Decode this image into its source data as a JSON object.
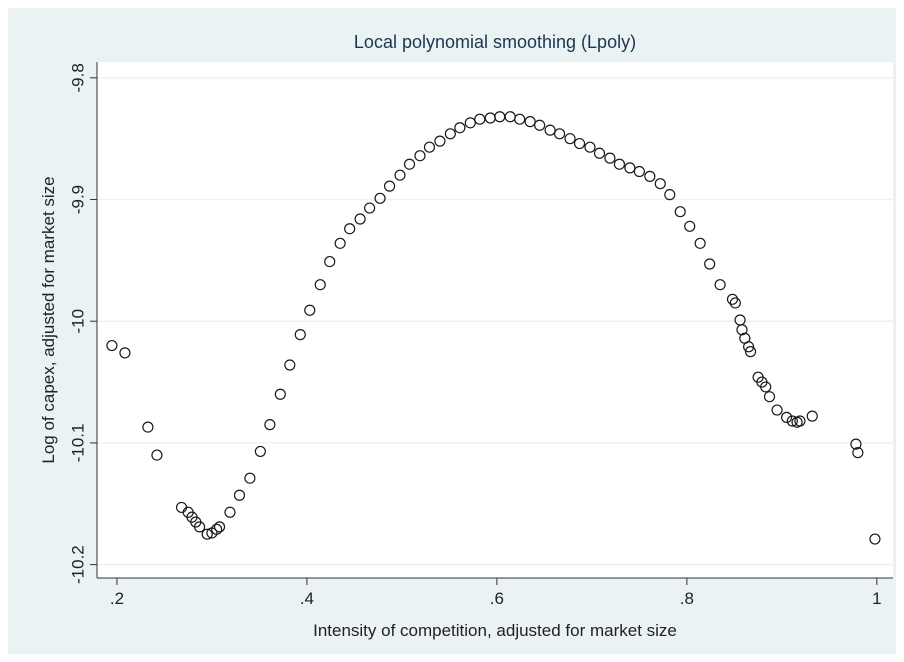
{
  "chart_data": {
    "type": "scatter",
    "title": "Local polynomial smoothing (Lpoly)",
    "x_label": "Intensity of competition, adjusted for market size",
    "y_label": "Log of capex, adjusted for market size",
    "xlim": [
      0.179,
      1.017
    ],
    "ylim": [
      -10.211,
      -9.787
    ],
    "xticks": [
      {
        "value": 0.2,
        "label": ".2"
      },
      {
        "value": 0.4,
        "label": ".4"
      },
      {
        "value": 0.6,
        "label": ".6"
      },
      {
        "value": 0.8,
        "label": ".8"
      },
      1
    ],
    "yticks": [
      -9.8,
      -9.9,
      -10,
      -10.1,
      -10.2
    ],
    "grid": true,
    "color": "#1a1a1a",
    "x": [
      0.1947,
      0.2084,
      0.2326,
      0.2421,
      0.268,
      0.275,
      0.279,
      0.283,
      0.287,
      0.295,
      0.3,
      0.305,
      0.308,
      0.319,
      0.329,
      0.34,
      0.351,
      0.361,
      0.372,
      0.382,
      0.393,
      0.403,
      0.414,
      0.424,
      0.435,
      0.445,
      0.456,
      0.466,
      0.477,
      0.487,
      0.498,
      0.508,
      0.519,
      0.529,
      0.54,
      0.551,
      0.561,
      0.572,
      0.582,
      0.593,
      0.603,
      0.614,
      0.624,
      0.635,
      0.645,
      0.656,
      0.666,
      0.677,
      0.687,
      0.698,
      0.708,
      0.719,
      0.729,
      0.74,
      0.75,
      0.761,
      0.772,
      0.782,
      0.793,
      0.803,
      0.814,
      0.824,
      0.835,
      0.848,
      0.851,
      0.856,
      0.858,
      0.861,
      0.865,
      0.867,
      0.875,
      0.879,
      0.883,
      0.887,
      0.895,
      0.905,
      0.911,
      0.916,
      0.919,
      0.932,
      0.978,
      0.98,
      0.998
    ],
    "values": [
      -10.02,
      -10.026,
      -10.087,
      -10.11,
      -10.153,
      -10.157,
      -10.161,
      -10.165,
      -10.169,
      -10.175,
      -10.174,
      -10.171,
      -10.169,
      -10.157,
      -10.143,
      -10.129,
      -10.107,
      -10.085,
      -10.06,
      -10.036,
      -10.011,
      -9.991,
      -9.97,
      -9.951,
      -9.936,
      -9.924,
      -9.916,
      -9.907,
      -9.899,
      -9.889,
      -9.88,
      -9.871,
      -9.864,
      -9.857,
      -9.852,
      -9.846,
      -9.841,
      -9.837,
      -9.834,
      -9.833,
      -9.832,
      -9.832,
      -9.834,
      -9.836,
      -9.839,
      -9.843,
      -9.846,
      -9.85,
      -9.854,
      -9.857,
      -9.862,
      -9.866,
      -9.871,
      -9.874,
      -9.877,
      -9.881,
      -9.887,
      -9.896,
      -9.91,
      -9.922,
      -9.936,
      -9.953,
      -9.97,
      -9.982,
      -9.985,
      -9.999,
      -10.007,
      -10.014,
      -10.021,
      -10.025,
      -10.046,
      -10.05,
      -10.054,
      -10.062,
      -10.073,
      -10.079,
      -10.082,
      -10.083,
      -10.082,
      -10.078,
      -10.101,
      -10.108,
      -10.179
    ]
  }
}
